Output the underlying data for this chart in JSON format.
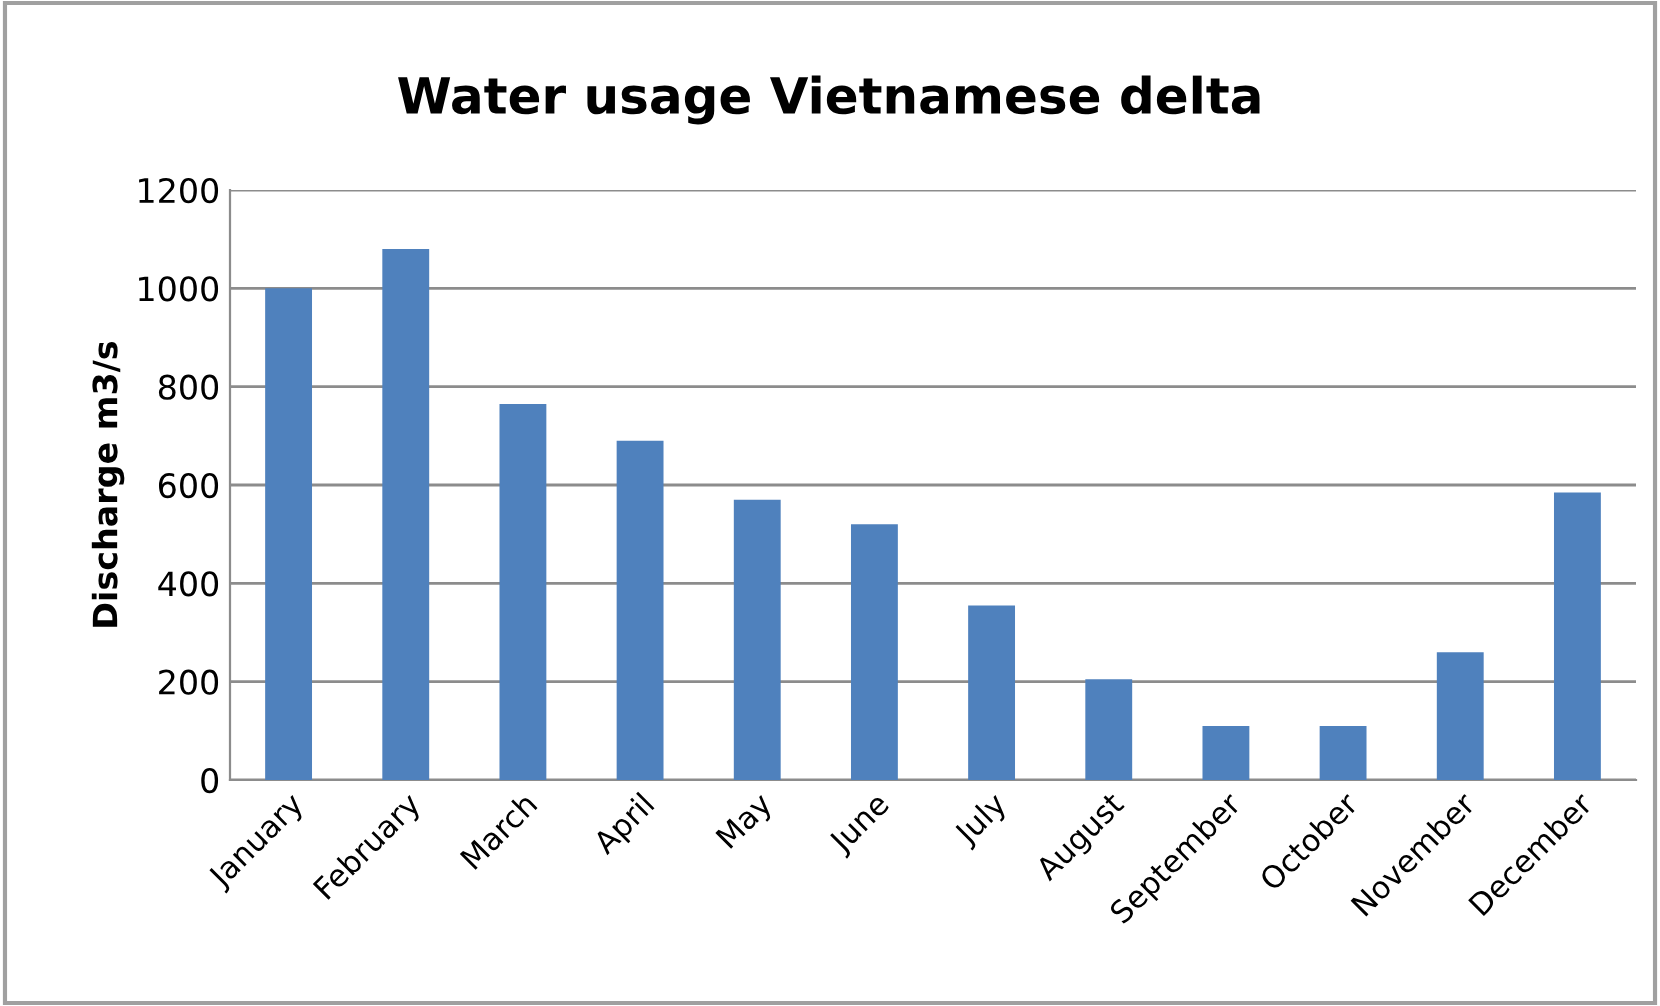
{
  "chart_data": {
    "type": "bar",
    "title": "Water usage Vietnamese delta",
    "ylabel": "Discharge m3/s",
    "categories": [
      "January",
      "February",
      "March",
      "April",
      "May",
      "June",
      "July",
      "August",
      "September",
      "October",
      "November",
      "December"
    ],
    "values": [
      1000,
      1080,
      765,
      690,
      570,
      520,
      355,
      205,
      110,
      110,
      260,
      585
    ],
    "color": "#4f81bd",
    "ylim": [
      0,
      1200
    ],
    "yticks": [
      0,
      200,
      400,
      600,
      800,
      1000,
      1200
    ],
    "grid": "y",
    "legend": false
  }
}
